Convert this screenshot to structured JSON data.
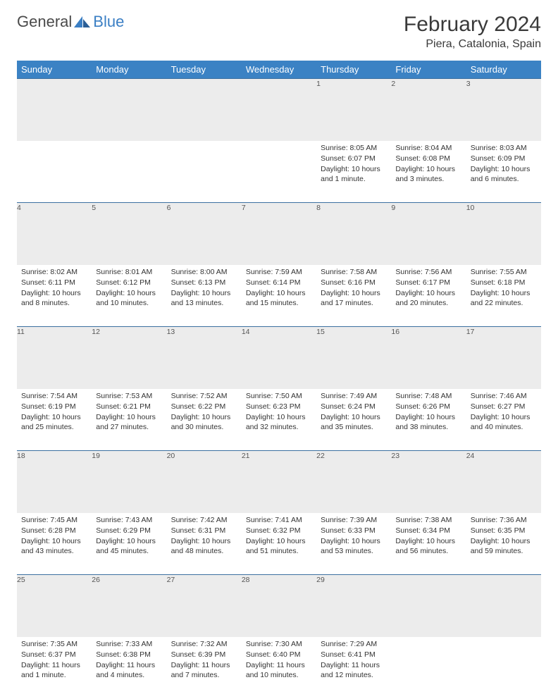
{
  "logo": {
    "general": "General",
    "blue": "Blue"
  },
  "title": "February 2024",
  "location": "Piera, Catalonia, Spain",
  "colors": {
    "header_bg": "#3b82c4",
    "header_text": "#ffffff",
    "daynum_bg": "#ececec",
    "border": "#3b6fa0",
    "logo_gray": "#4a4a4a",
    "logo_blue": "#3b7fc4"
  },
  "weekdays": [
    "Sunday",
    "Monday",
    "Tuesday",
    "Wednesday",
    "Thursday",
    "Friday",
    "Saturday"
  ],
  "weeks": [
    [
      null,
      null,
      null,
      null,
      {
        "n": "1",
        "sr": "Sunrise: 8:05 AM",
        "ss": "Sunset: 6:07 PM",
        "dl": "Daylight: 10 hours and 1 minute."
      },
      {
        "n": "2",
        "sr": "Sunrise: 8:04 AM",
        "ss": "Sunset: 6:08 PM",
        "dl": "Daylight: 10 hours and 3 minutes."
      },
      {
        "n": "3",
        "sr": "Sunrise: 8:03 AM",
        "ss": "Sunset: 6:09 PM",
        "dl": "Daylight: 10 hours and 6 minutes."
      }
    ],
    [
      {
        "n": "4",
        "sr": "Sunrise: 8:02 AM",
        "ss": "Sunset: 6:11 PM",
        "dl": "Daylight: 10 hours and 8 minutes."
      },
      {
        "n": "5",
        "sr": "Sunrise: 8:01 AM",
        "ss": "Sunset: 6:12 PM",
        "dl": "Daylight: 10 hours and 10 minutes."
      },
      {
        "n": "6",
        "sr": "Sunrise: 8:00 AM",
        "ss": "Sunset: 6:13 PM",
        "dl": "Daylight: 10 hours and 13 minutes."
      },
      {
        "n": "7",
        "sr": "Sunrise: 7:59 AM",
        "ss": "Sunset: 6:14 PM",
        "dl": "Daylight: 10 hours and 15 minutes."
      },
      {
        "n": "8",
        "sr": "Sunrise: 7:58 AM",
        "ss": "Sunset: 6:16 PM",
        "dl": "Daylight: 10 hours and 17 minutes."
      },
      {
        "n": "9",
        "sr": "Sunrise: 7:56 AM",
        "ss": "Sunset: 6:17 PM",
        "dl": "Daylight: 10 hours and 20 minutes."
      },
      {
        "n": "10",
        "sr": "Sunrise: 7:55 AM",
        "ss": "Sunset: 6:18 PM",
        "dl": "Daylight: 10 hours and 22 minutes."
      }
    ],
    [
      {
        "n": "11",
        "sr": "Sunrise: 7:54 AM",
        "ss": "Sunset: 6:19 PM",
        "dl": "Daylight: 10 hours and 25 minutes."
      },
      {
        "n": "12",
        "sr": "Sunrise: 7:53 AM",
        "ss": "Sunset: 6:21 PM",
        "dl": "Daylight: 10 hours and 27 minutes."
      },
      {
        "n": "13",
        "sr": "Sunrise: 7:52 AM",
        "ss": "Sunset: 6:22 PM",
        "dl": "Daylight: 10 hours and 30 minutes."
      },
      {
        "n": "14",
        "sr": "Sunrise: 7:50 AM",
        "ss": "Sunset: 6:23 PM",
        "dl": "Daylight: 10 hours and 32 minutes."
      },
      {
        "n": "15",
        "sr": "Sunrise: 7:49 AM",
        "ss": "Sunset: 6:24 PM",
        "dl": "Daylight: 10 hours and 35 minutes."
      },
      {
        "n": "16",
        "sr": "Sunrise: 7:48 AM",
        "ss": "Sunset: 6:26 PM",
        "dl": "Daylight: 10 hours and 38 minutes."
      },
      {
        "n": "17",
        "sr": "Sunrise: 7:46 AM",
        "ss": "Sunset: 6:27 PM",
        "dl": "Daylight: 10 hours and 40 minutes."
      }
    ],
    [
      {
        "n": "18",
        "sr": "Sunrise: 7:45 AM",
        "ss": "Sunset: 6:28 PM",
        "dl": "Daylight: 10 hours and 43 minutes."
      },
      {
        "n": "19",
        "sr": "Sunrise: 7:43 AM",
        "ss": "Sunset: 6:29 PM",
        "dl": "Daylight: 10 hours and 45 minutes."
      },
      {
        "n": "20",
        "sr": "Sunrise: 7:42 AM",
        "ss": "Sunset: 6:31 PM",
        "dl": "Daylight: 10 hours and 48 minutes."
      },
      {
        "n": "21",
        "sr": "Sunrise: 7:41 AM",
        "ss": "Sunset: 6:32 PM",
        "dl": "Daylight: 10 hours and 51 minutes."
      },
      {
        "n": "22",
        "sr": "Sunrise: 7:39 AM",
        "ss": "Sunset: 6:33 PM",
        "dl": "Daylight: 10 hours and 53 minutes."
      },
      {
        "n": "23",
        "sr": "Sunrise: 7:38 AM",
        "ss": "Sunset: 6:34 PM",
        "dl": "Daylight: 10 hours and 56 minutes."
      },
      {
        "n": "24",
        "sr": "Sunrise: 7:36 AM",
        "ss": "Sunset: 6:35 PM",
        "dl": "Daylight: 10 hours and 59 minutes."
      }
    ],
    [
      {
        "n": "25",
        "sr": "Sunrise: 7:35 AM",
        "ss": "Sunset: 6:37 PM",
        "dl": "Daylight: 11 hours and 1 minute."
      },
      {
        "n": "26",
        "sr": "Sunrise: 7:33 AM",
        "ss": "Sunset: 6:38 PM",
        "dl": "Daylight: 11 hours and 4 minutes."
      },
      {
        "n": "27",
        "sr": "Sunrise: 7:32 AM",
        "ss": "Sunset: 6:39 PM",
        "dl": "Daylight: 11 hours and 7 minutes."
      },
      {
        "n": "28",
        "sr": "Sunrise: 7:30 AM",
        "ss": "Sunset: 6:40 PM",
        "dl": "Daylight: 11 hours and 10 minutes."
      },
      {
        "n": "29",
        "sr": "Sunrise: 7:29 AM",
        "ss": "Sunset: 6:41 PM",
        "dl": "Daylight: 11 hours and 12 minutes."
      },
      null,
      null
    ]
  ]
}
